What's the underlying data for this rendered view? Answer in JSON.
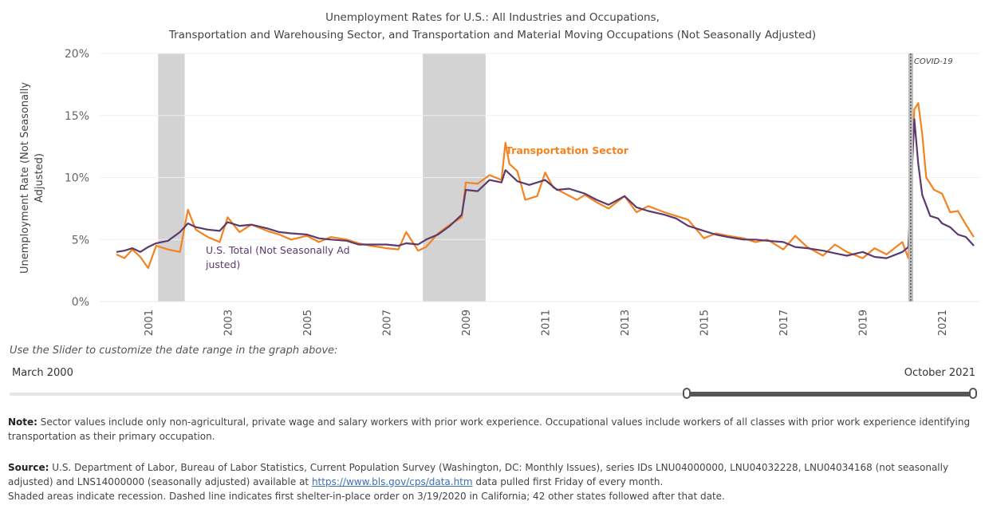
{
  "title_line1": "Unemployment Rates for U.S.: All Industries and Occupations,",
  "title_line2": "Transportation and Warehousing Sector, and Transportation and Material Moving Occupations (Not Seasonally Adjusted)",
  "slider": {
    "prompt": "Use the Slider to customize the date range in the graph above:",
    "start_label": "March 2000",
    "end_label": "October 2021"
  },
  "note": {
    "label": "Note:",
    "text": " Sector values include only non-agricultural, private wage and salary workers with prior work experience. Occupational values include workers of all classes with prior work experience identifying transportation as their primary occupation."
  },
  "source": {
    "label": "Source:",
    "text_before": " U.S. Department of Labor, Bureau of Labor Statistics, Current Population Survey  (Washington, DC: Monthly Issues), series IDs LNU04000000, LNU04032228, LNU04034168 (not seasonally adjusted) and LNS14000000 (seasonally adjusted) available at ",
    "link_text": "https://www.bls.gov/cps/data.htm",
    "text_after": " data pulled first Friday of every month.",
    "line2": "Shaded areas indicate recession. Dashed line indicates first shelter-in-place order on 3/19/2020 in California; 42 other states followed after that date."
  },
  "colors": {
    "transport": "#f5821f",
    "us_total": "#5b3a6e",
    "recession": "#d3d3d3",
    "covid_line": "#555555"
  },
  "chart_data": {
    "type": "line",
    "ylabel": "Unemployment Rate (Not Seasonally Adjusted)",
    "ylim": [
      0,
      20
    ],
    "y_ticks": [
      0,
      5,
      10,
      15,
      20
    ],
    "y_tick_labels": [
      "0%",
      "5%",
      "10%",
      "15%",
      "20%"
    ],
    "xlim": [
      2000.2,
      2021.9
    ],
    "x_ticks": [
      2001,
      2003,
      2005,
      2007,
      2009,
      2011,
      2013,
      2015,
      2017,
      2019,
      2021
    ],
    "recessions": [
      [
        2001.25,
        2001.92
      ],
      [
        2007.92,
        2009.5
      ]
    ],
    "covid_marker": {
      "x": 2020.21,
      "label": "COVID-19"
    },
    "series": [
      {
        "name": "Transportation Sector",
        "x": [
          2000.2,
          2000.4,
          2000.6,
          2000.8,
          2001.0,
          2001.2,
          2001.5,
          2001.8,
          2002.0,
          2002.2,
          2002.5,
          2002.8,
          2003.0,
          2003.3,
          2003.6,
          2004.0,
          2004.3,
          2004.6,
          2005.0,
          2005.3,
          2005.6,
          2006.0,
          2006.3,
          2006.6,
          2007.0,
          2007.3,
          2007.5,
          2007.8,
          2008.0,
          2008.3,
          2008.6,
          2008.9,
          2009.0,
          2009.3,
          2009.6,
          2009.9,
          2010.0,
          2010.1,
          2010.3,
          2010.5,
          2010.8,
          2011.0,
          2011.2,
          2011.5,
          2011.8,
          2012.0,
          2012.3,
          2012.6,
          2013.0,
          2013.3,
          2013.6,
          2014.0,
          2014.3,
          2014.6,
          2015.0,
          2015.3,
          2015.6,
          2016.0,
          2016.3,
          2016.6,
          2017.0,
          2017.3,
          2017.6,
          2018.0,
          2018.3,
          2018.6,
          2019.0,
          2019.3,
          2019.6,
          2020.0,
          2020.15,
          2020.3,
          2020.4,
          2020.5,
          2020.6,
          2020.8,
          2021.0,
          2021.2,
          2021.4,
          2021.6,
          2021.8
        ],
        "values": [
          3.8,
          3.5,
          4.2,
          3.6,
          2.7,
          4.5,
          4.2,
          4.0,
          7.4,
          5.8,
          5.2,
          4.8,
          6.8,
          5.6,
          6.2,
          5.7,
          5.4,
          5.0,
          5.3,
          4.8,
          5.2,
          5.0,
          4.7,
          4.5,
          4.3,
          4.2,
          5.6,
          4.1,
          4.4,
          5.5,
          6.2,
          6.8,
          9.6,
          9.5,
          10.2,
          9.8,
          12.8,
          11.1,
          10.5,
          8.2,
          8.5,
          10.4,
          9.2,
          8.7,
          8.2,
          8.6,
          8.0,
          7.5,
          8.5,
          7.2,
          7.7,
          7.2,
          6.9,
          6.6,
          5.1,
          5.5,
          5.3,
          5.1,
          4.8,
          5.0,
          4.2,
          5.3,
          4.4,
          3.7,
          4.6,
          4.0,
          3.5,
          4.3,
          3.8,
          4.8,
          3.5,
          15.5,
          16.0,
          13.5,
          10.0,
          9.0,
          8.7,
          7.2,
          7.3,
          6.2,
          5.2
        ],
        "label": "Transportation Sector"
      },
      {
        "name": "U.S. Total (Not Seasonally Adjusted)",
        "x": [
          2000.2,
          2000.4,
          2000.6,
          2000.8,
          2001.0,
          2001.2,
          2001.5,
          2001.8,
          2002.0,
          2002.2,
          2002.5,
          2002.8,
          2003.0,
          2003.3,
          2003.6,
          2004.0,
          2004.3,
          2004.6,
          2005.0,
          2005.3,
          2005.6,
          2006.0,
          2006.3,
          2006.6,
          2007.0,
          2007.3,
          2007.5,
          2007.8,
          2008.0,
          2008.3,
          2008.6,
          2008.9,
          2009.0,
          2009.3,
          2009.6,
          2009.9,
          2010.0,
          2010.3,
          2010.6,
          2011.0,
          2011.3,
          2011.6,
          2012.0,
          2012.3,
          2012.6,
          2013.0,
          2013.3,
          2013.6,
          2014.0,
          2014.3,
          2014.6,
          2015.0,
          2015.3,
          2015.6,
          2016.0,
          2016.3,
          2016.6,
          2017.0,
          2017.3,
          2017.6,
          2018.0,
          2018.3,
          2018.6,
          2019.0,
          2019.3,
          2019.6,
          2020.0,
          2020.15,
          2020.3,
          2020.4,
          2020.5,
          2020.7,
          2020.9,
          2021.0,
          2021.2,
          2021.4,
          2021.6,
          2021.8
        ],
        "values": [
          4.0,
          4.1,
          4.3,
          4.0,
          4.4,
          4.7,
          4.9,
          5.6,
          6.3,
          6.0,
          5.8,
          5.7,
          6.4,
          6.1,
          6.2,
          5.9,
          5.6,
          5.5,
          5.4,
          5.1,
          5.0,
          4.9,
          4.6,
          4.6,
          4.6,
          4.5,
          4.7,
          4.6,
          5.0,
          5.4,
          6.1,
          7.0,
          9.0,
          8.9,
          9.8,
          9.6,
          10.6,
          9.7,
          9.4,
          9.8,
          9.0,
          9.1,
          8.7,
          8.2,
          7.8,
          8.5,
          7.6,
          7.3,
          7.0,
          6.7,
          6.1,
          5.7,
          5.4,
          5.2,
          5.0,
          5.0,
          4.9,
          4.8,
          4.4,
          4.3,
          4.1,
          3.9,
          3.7,
          4.0,
          3.6,
          3.5,
          4.0,
          4.4,
          14.7,
          11.1,
          8.6,
          6.9,
          6.7,
          6.3,
          6.0,
          5.4,
          5.2,
          4.5
        ],
        "label": "U.S. Total (Not Seasonally Adjusted)"
      }
    ]
  }
}
